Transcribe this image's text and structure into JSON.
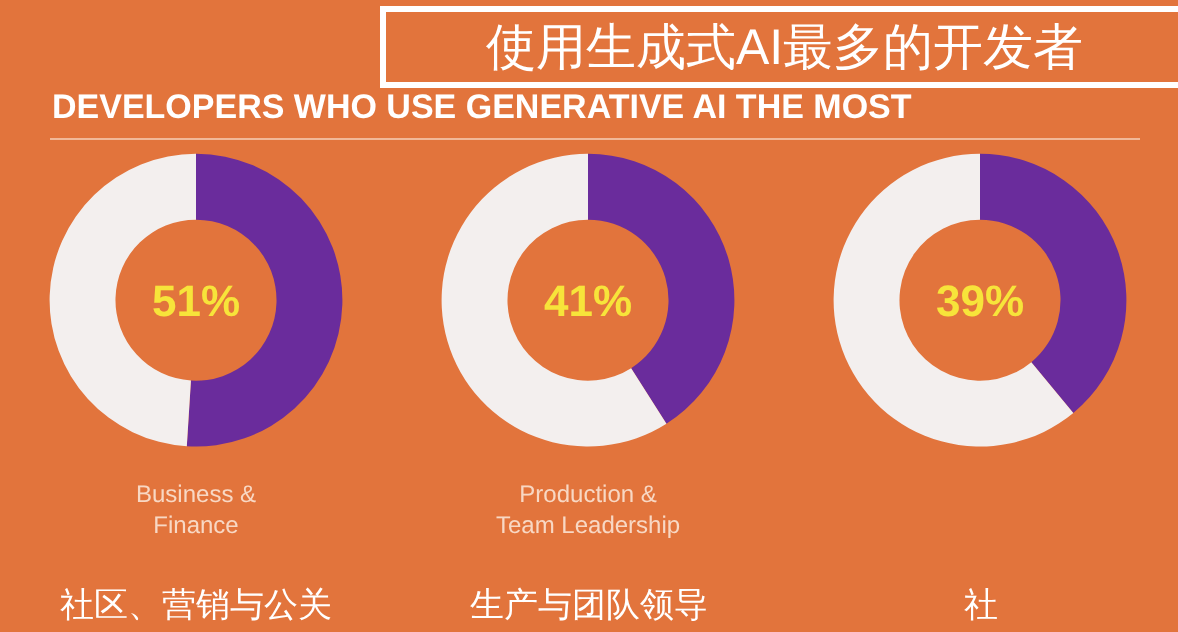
{
  "chart_data": [
    {
      "type": "donut",
      "subtitle": "DEVELOPERS WHO USE GENERATIVE AI THE MOST",
      "categories": [
        null,
        null
      ],
      "values": [
        51,
        49
      ],
      "colors": [
        "#6a2c9c",
        "#f3efee"
      ],
      "annotations": [
        "51%",
        "Business &\nFinance",
        "社区、营销与公关"
      ]
    },
    {
      "type": "donut",
      "title": "使用生成式AI最多的开发者",
      "categories": [
        null,
        null
      ],
      "values": [
        41,
        59
      ],
      "colors": [
        "#6a2c9c",
        "#f3efee"
      ],
      "annotations": [
        "41%",
        "Production &\nTeam Leadership",
        "生产与团队领导"
      ]
    },
    {
      "type": "donut",
      "categories": [
        null,
        null
      ],
      "values": [
        39,
        61
      ],
      "colors": [
        "#6a2c9c",
        "#f3efee"
      ],
      "annotations": [
        "39%",
        "社"
      ]
    }
  ]
}
